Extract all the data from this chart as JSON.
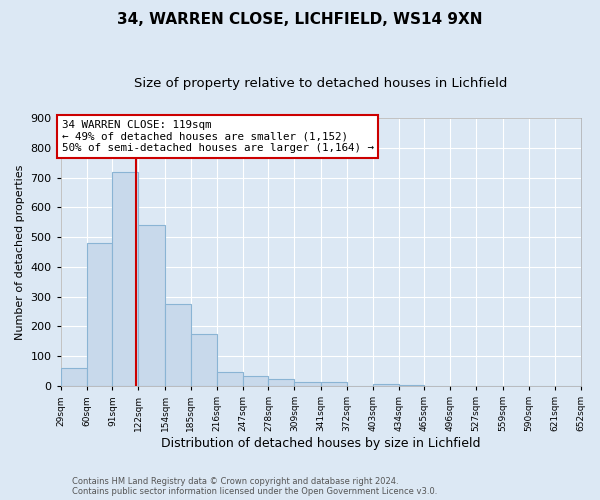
{
  "title1": "34, WARREN CLOSE, LICHFIELD, WS14 9XN",
  "title2": "Size of property relative to detached houses in Lichfield",
  "xlabel": "Distribution of detached houses by size in Lichfield",
  "ylabel": "Number of detached properties",
  "bin_edges": [
    29,
    60,
    91,
    122,
    154,
    185,
    216,
    247,
    278,
    309,
    341,
    372,
    403,
    434,
    465,
    496,
    527,
    559,
    590,
    621,
    652
  ],
  "bar_heights": [
    60,
    480,
    720,
    540,
    275,
    175,
    48,
    35,
    25,
    15,
    12,
    0,
    8,
    5,
    0,
    0,
    0,
    0,
    0,
    0
  ],
  "bar_color": "#c8d9eb",
  "bar_edge_color": "#8ab4d4",
  "property_size": 119,
  "vline_color": "#cc0000",
  "ylim_max": 900,
  "yticks": [
    0,
    100,
    200,
    300,
    400,
    500,
    600,
    700,
    800,
    900
  ],
  "annot_line1": "34 WARREN CLOSE: 119sqm",
  "annot_line2": "← 49% of detached houses are smaller (1,152)",
  "annot_line3": "50% of semi-detached houses are larger (1,164) →",
  "annot_box_edgecolor": "#cc0000",
  "footer1": "Contains HM Land Registry data © Crown copyright and database right 2024.",
  "footer2": "Contains public sector information licensed under the Open Government Licence v3.0.",
  "bg_color": "#dce8f4",
  "grid_color": "#ffffff",
  "title1_fontsize": 11,
  "title2_fontsize": 9.5,
  "ylabel_fontsize": 8,
  "xlabel_fontsize": 9,
  "ytick_fontsize": 8,
  "xtick_fontsize": 6.5,
  "annot_fontsize": 7.8,
  "footer_fontsize": 6
}
